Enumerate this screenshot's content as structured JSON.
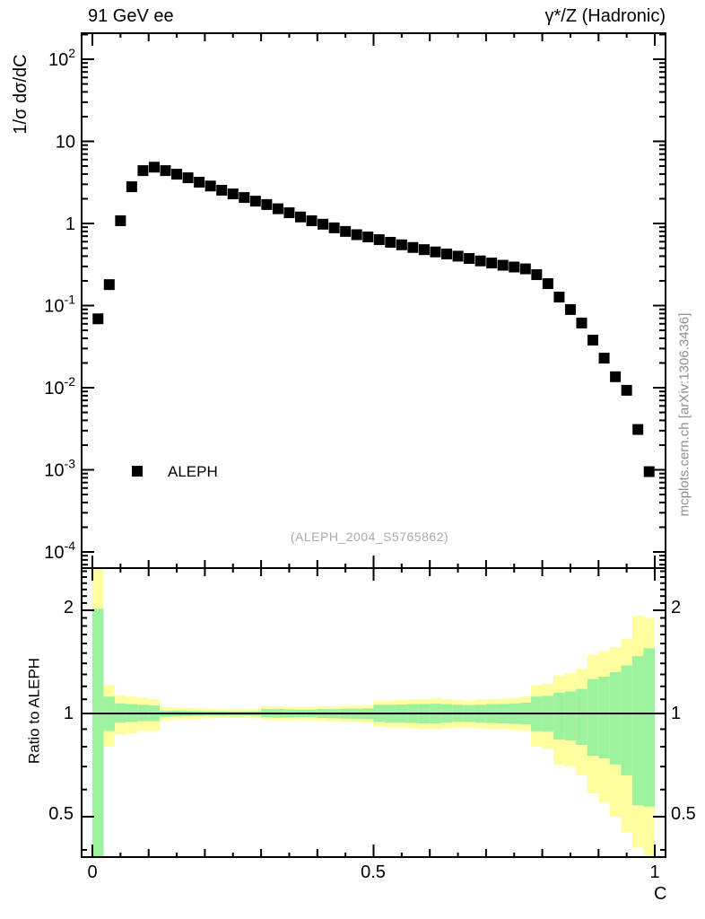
{
  "titles": {
    "left": "91 GeV ee",
    "right": "γ*/Z (Hadronic)"
  },
  "top_panel": {
    "ylabel": "1/σ  dσ/dC",
    "ytick_labels": [
      {
        "value": 100,
        "base": "10",
        "exp": "2"
      },
      {
        "value": 10,
        "base": "10",
        "exp": ""
      },
      {
        "value": 1,
        "base": "1",
        "exp": ""
      },
      {
        "value": 0.1,
        "base": "10",
        "exp": "-1"
      },
      {
        "value": 0.01,
        "base": "10",
        "exp": "-2"
      },
      {
        "value": 0.001,
        "base": "10",
        "exp": "-3"
      },
      {
        "value": 0.0001,
        "base": "10",
        "exp": "-4"
      }
    ]
  },
  "ratio_panel": {
    "ylabel": "Ratio to ALEPH",
    "tick_labels": [
      "2",
      "1",
      "0.5"
    ],
    "tick_values": [
      2,
      1,
      0.5
    ]
  },
  "xaxis": {
    "label": "C",
    "tick_labels": [
      "0",
      "0.5",
      "1"
    ],
    "tick_values": [
      0,
      0.5,
      1
    ]
  },
  "legend": {
    "label": "ALEPH",
    "marker_color": "#000000"
  },
  "watermark": "(ALEPH_2004_S5765862)",
  "side_note": "mcplots.cern.ch [arXiv:1306.3436]",
  "colors": {
    "marker": "#000000",
    "frame": "#000000",
    "yellow_band": "#ffffa0",
    "green_band": "#9df29d",
    "gray_text": "#8f8f8f",
    "watermark_text": "#ababab"
  },
  "chart_data": [
    {
      "type": "scatter",
      "series_name": "ALEPH",
      "title": "91 GeV ee — γ*/Z (Hadronic)",
      "xlabel": "C",
      "ylabel": "1/σ dσ/dC",
      "y_scale": "log",
      "xlim": [
        -0.019,
        1.019
      ],
      "ylim": [
        6.3e-05,
        208
      ],
      "x": [
        0.01,
        0.03,
        0.05,
        0.07,
        0.09,
        0.11,
        0.13,
        0.15,
        0.17,
        0.19,
        0.21,
        0.23,
        0.25,
        0.27,
        0.29,
        0.31,
        0.33,
        0.35,
        0.37,
        0.39,
        0.41,
        0.43,
        0.45,
        0.47,
        0.49,
        0.51,
        0.53,
        0.55,
        0.57,
        0.59,
        0.61,
        0.63,
        0.65,
        0.67,
        0.69,
        0.71,
        0.73,
        0.75,
        0.77,
        0.79,
        0.81,
        0.83,
        0.85,
        0.87,
        0.89,
        0.91,
        0.93,
        0.95,
        0.97,
        0.99
      ],
      "y": [
        0.069,
        0.18,
        1.08,
        2.8,
        4.4,
        4.85,
        4.4,
        3.98,
        3.6,
        3.18,
        2.86,
        2.54,
        2.29,
        2.07,
        1.87,
        1.7,
        1.51,
        1.35,
        1.2,
        1.08,
        0.98,
        0.885,
        0.8,
        0.73,
        0.685,
        0.635,
        0.59,
        0.55,
        0.51,
        0.48,
        0.45,
        0.425,
        0.4,
        0.375,
        0.35,
        0.33,
        0.31,
        0.295,
        0.28,
        0.238,
        0.185,
        0.127,
        0.0895,
        0.0614,
        0.038,
        0.0229,
        0.0136,
        0.0093,
        0.0031,
        0.00095
      ]
    },
    {
      "type": "band-ratio",
      "ylabel": "Ratio to ALEPH",
      "y_scale": "log",
      "ylim": [
        0.38,
        2.66
      ],
      "reference_line": 1,
      "bin_width": 0.02,
      "bin_start": 0.0,
      "yellow_lo": [
        0.37,
        0.8,
        0.87,
        0.875,
        0.89,
        0.89,
        0.954,
        0.96,
        0.962,
        0.965,
        0.968,
        0.97,
        0.97,
        0.97,
        0.968,
        0.96,
        0.955,
        0.955,
        0.957,
        0.955,
        0.95,
        0.948,
        0.945,
        0.943,
        0.94,
        0.916,
        0.91,
        0.91,
        0.905,
        0.9,
        0.9,
        0.905,
        0.91,
        0.91,
        0.905,
        0.9,
        0.9,
        0.895,
        0.89,
        0.8,
        0.79,
        0.71,
        0.7,
        0.66,
        0.585,
        0.55,
        0.5,
        0.45,
        0.406,
        0.37
      ],
      "yellow_hi": [
        2.7,
        1.21,
        1.13,
        1.12,
        1.11,
        1.1,
        1.043,
        1.04,
        1.038,
        1.035,
        1.032,
        1.03,
        1.03,
        1.03,
        1.032,
        1.05,
        1.05,
        1.045,
        1.044,
        1.045,
        1.05,
        1.05,
        1.052,
        1.055,
        1.058,
        1.09,
        1.09,
        1.095,
        1.1,
        1.1,
        1.11,
        1.1,
        1.095,
        1.09,
        1.1,
        1.1,
        1.105,
        1.11,
        1.12,
        1.21,
        1.22,
        1.29,
        1.31,
        1.35,
        1.48,
        1.52,
        1.56,
        1.65,
        1.93,
        1.9
      ],
      "green_lo": [
        0.37,
        0.89,
        0.94,
        0.945,
        0.95,
        0.95,
        0.977,
        0.98,
        0.982,
        0.983,
        0.985,
        0.985,
        0.986,
        0.986,
        0.985,
        0.975,
        0.972,
        0.973,
        0.975,
        0.974,
        0.97,
        0.968,
        0.966,
        0.965,
        0.963,
        0.945,
        0.94,
        0.94,
        0.938,
        0.936,
        0.935,
        0.94,
        0.945,
        0.945,
        0.94,
        0.938,
        0.936,
        0.933,
        0.93,
        0.888,
        0.885,
        0.84,
        0.835,
        0.81,
        0.753,
        0.74,
        0.71,
        0.66,
        0.54,
        0.535
      ],
      "green_hi": [
        2.02,
        1.12,
        1.07,
        1.065,
        1.06,
        1.055,
        1.019,
        1.02,
        1.018,
        1.017,
        1.015,
        1.015,
        1.014,
        1.014,
        1.015,
        1.03,
        1.03,
        1.028,
        1.026,
        1.027,
        1.03,
        1.03,
        1.032,
        1.033,
        1.035,
        1.06,
        1.06,
        1.062,
        1.065,
        1.066,
        1.068,
        1.065,
        1.06,
        1.058,
        1.06,
        1.065,
        1.066,
        1.07,
        1.075,
        1.12,
        1.125,
        1.15,
        1.16,
        1.18,
        1.26,
        1.28,
        1.32,
        1.38,
        1.47,
        1.55
      ]
    }
  ]
}
